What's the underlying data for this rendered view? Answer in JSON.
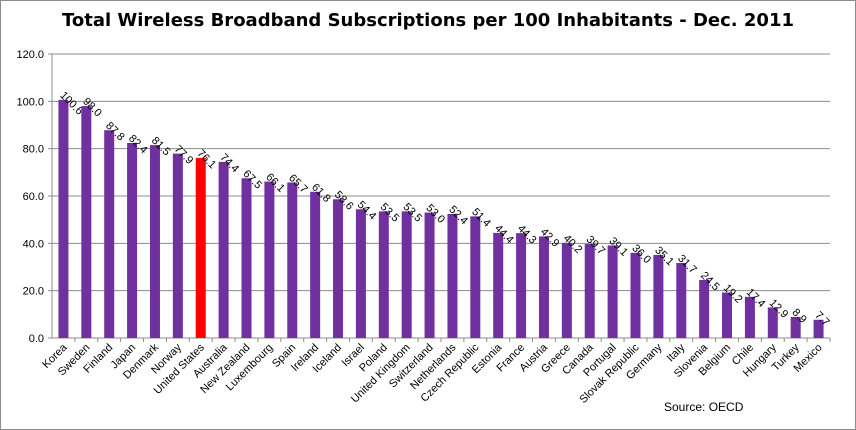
{
  "chart_data": {
    "type": "bar",
    "title": "Total Wireless Broadband Subscriptions per 100 Inhabitants - Dec. 2011",
    "xlabel": "",
    "ylabel": "",
    "ylim": [
      0,
      120
    ],
    "yticks": [
      "0.0",
      "20.0",
      "40.0",
      "60.0",
      "80.0",
      "100.0",
      "120.0"
    ],
    "grid": true,
    "legend": "none",
    "colors": {
      "bar": "#7030a0",
      "highlight": "#ff0000",
      "grid": "#8c8c8c"
    },
    "highlight_category": "United States",
    "categories": [
      "Korea",
      "Sweden",
      "Finland",
      "Japan",
      "Denmark",
      "Norway",
      "United States",
      "Australia",
      "New Zealand",
      "Luxembourg",
      "Spain",
      "Ireland",
      "Iceland",
      "Israel",
      "Poland",
      "United Kingdom",
      "Switzerland",
      "Netherlands",
      "Czech Republic",
      "Estonia",
      "France",
      "Austria",
      "Greece",
      "Canada",
      "Portugal",
      "Slovak Republic",
      "Germany",
      "Italy",
      "Slovenia",
      "Belgium",
      "Chile",
      "Hungary",
      "Turkey",
      "Mexico"
    ],
    "values": [
      100.6,
      98.0,
      87.8,
      82.4,
      81.5,
      77.9,
      76.1,
      74.4,
      67.5,
      66.1,
      65.7,
      61.8,
      58.6,
      54.4,
      53.5,
      53.5,
      53.0,
      52.4,
      51.4,
      44.4,
      44.3,
      42.9,
      40.2,
      39.7,
      39.1,
      36.0,
      35.1,
      31.7,
      24.5,
      19.2,
      17.4,
      12.9,
      8.9,
      7.7
    ],
    "labels": [
      "100.6",
      "98.0",
      "87.8",
      "82.4",
      "81.5",
      "77.9",
      "76.1",
      "74.4",
      "67.5",
      "66.1",
      "65.7",
      "61.8",
      "58.6",
      "54.4",
      "53.5",
      "53.5",
      "53.0",
      "52.4",
      "51.4",
      "44.4",
      "44.3",
      "42.9",
      "40.2",
      "39.7",
      "39.1",
      "36.0",
      "35.1",
      "31.7",
      "24.5",
      "19.2",
      "17.4",
      "12.9",
      "8.9",
      "7.7"
    ]
  },
  "source_text": "Source: OECD"
}
